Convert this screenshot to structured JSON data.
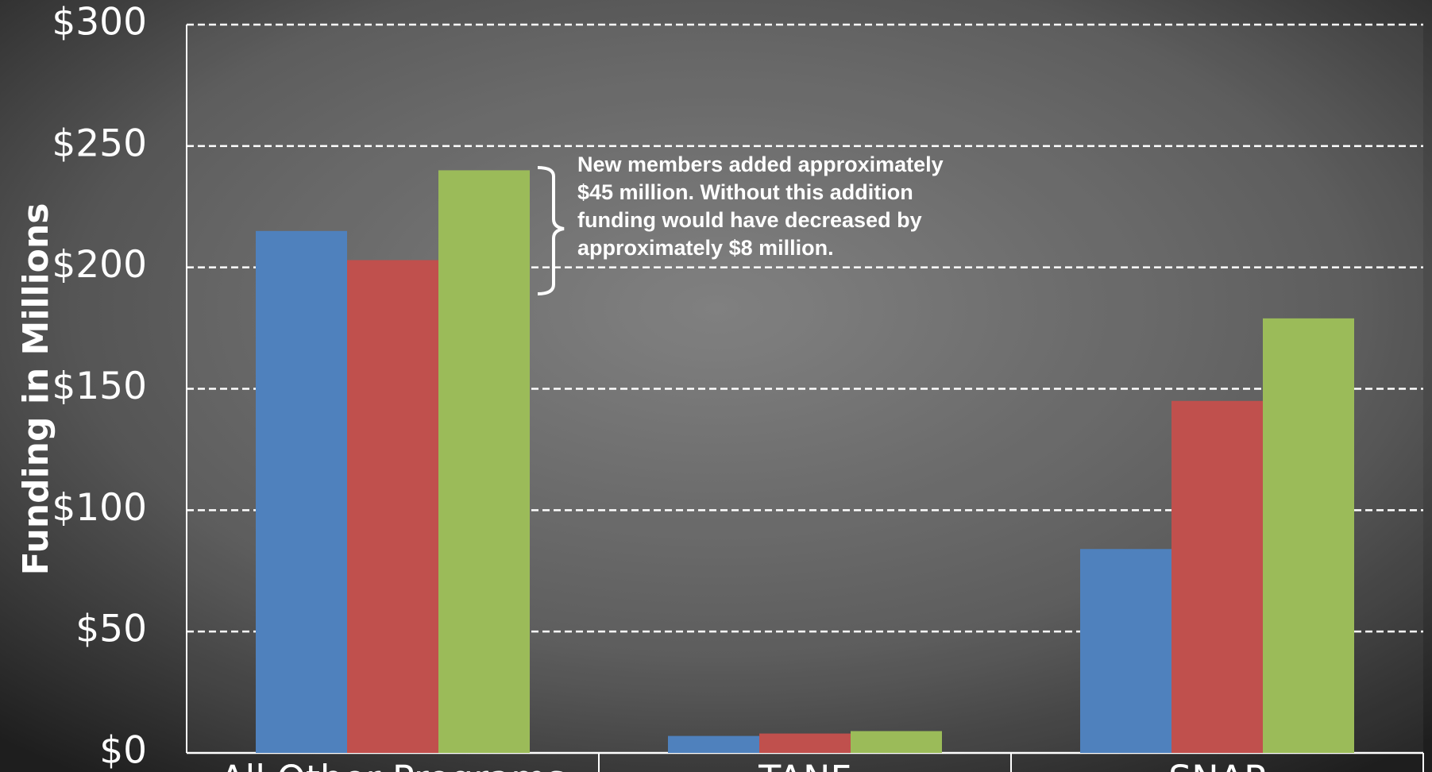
{
  "chart_data": {
    "type": "bar",
    "y_label": "Funding in Millions",
    "categories": [
      "All Other Programs",
      "TANF",
      "SNAP"
    ],
    "series": [
      {
        "color": "#4f81bd",
        "values": [
          215,
          7,
          84
        ]
      },
      {
        "color": "#c0504d",
        "values": [
          203,
          8,
          145
        ]
      },
      {
        "color": "#9bbb59",
        "values": [
          240,
          9,
          179
        ]
      }
    ],
    "ylim": [
      0,
      300
    ],
    "yticks": [
      {
        "value": 0,
        "label": "$0"
      },
      {
        "value": 50,
        "label": "$50"
      },
      {
        "value": 100,
        "label": "$100"
      },
      {
        "value": 150,
        "label": "$150"
      },
      {
        "value": 200,
        "label": "$200"
      },
      {
        "value": 250,
        "label": "$250"
      },
      {
        "value": 300,
        "label": "$300"
      }
    ],
    "grid": true,
    "annotation": [
      "New members added approximately",
      "$45 million. Without this addition",
      "funding  would have decreased by",
      "approximately $8 million."
    ]
  }
}
